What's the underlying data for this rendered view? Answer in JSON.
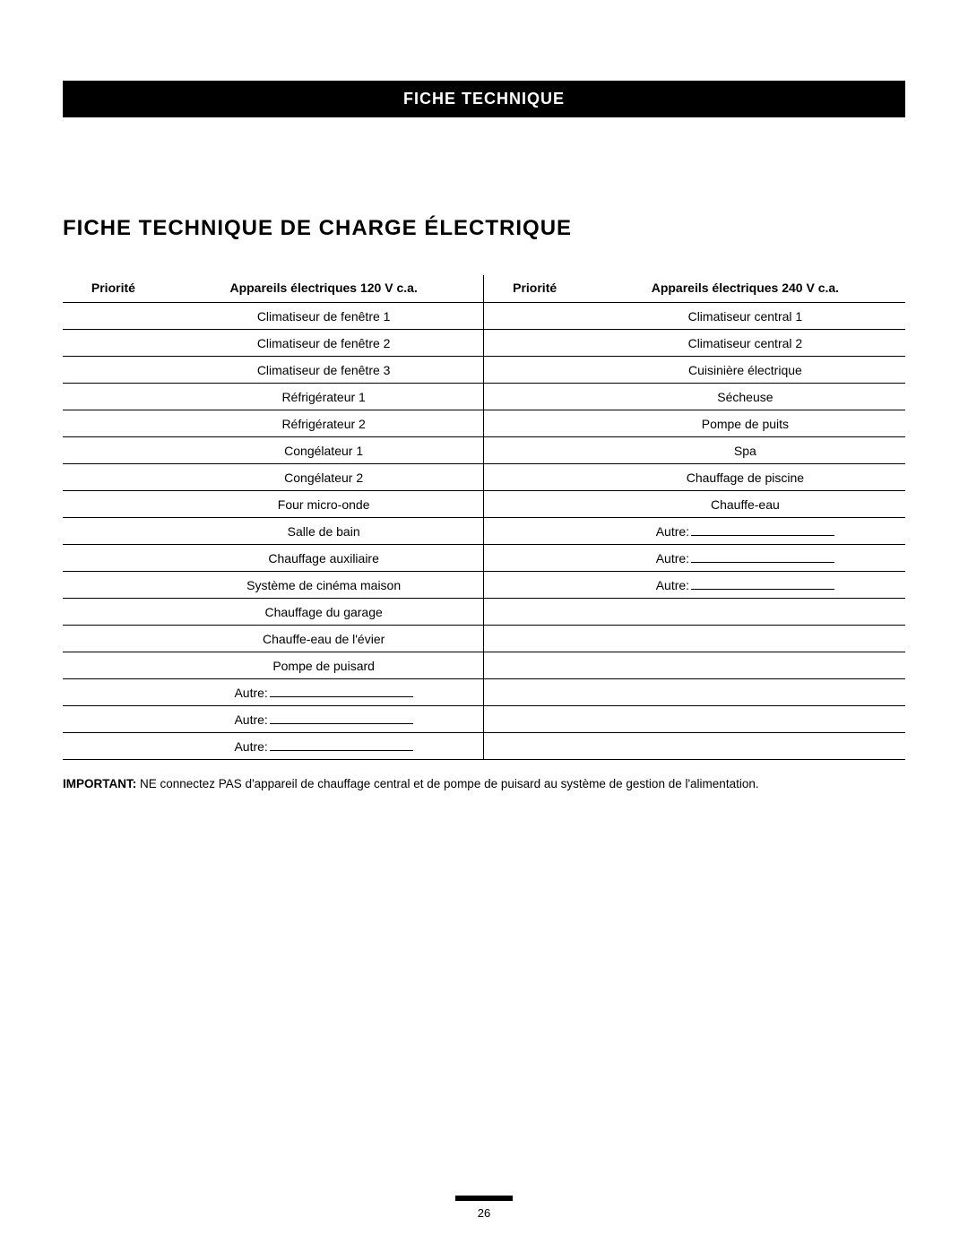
{
  "header": "FICHE TECHNIQUE",
  "section_title": "FICHE TECHNIQUE DE CHARGE ÉLECTRIQUE",
  "columns": {
    "pri_left": "Priorité",
    "app_left": "Appareils électriques 120 V c.a.",
    "pri_right": "Priorité",
    "app_right": "Appareils électriques 240 V c.a."
  },
  "other_label": "Autre:",
  "rows": [
    {
      "left": "Climatiseur de fenêtre 1",
      "right": "Climatiseur central 1"
    },
    {
      "left": "Climatiseur de fenêtre 2",
      "right": "Climatiseur central 2"
    },
    {
      "left": "Climatiseur de fenêtre 3",
      "right": "Cuisinière électrique"
    },
    {
      "left": "Réfrigérateur 1",
      "right": "Sécheuse"
    },
    {
      "left": "Réfrigérateur 2",
      "right": "Pompe de puits"
    },
    {
      "left": "Congélateur 1",
      "right": "Spa"
    },
    {
      "left": "Congélateur 2",
      "right": "Chauffage de piscine"
    },
    {
      "left": "Four micro-onde",
      "right": "Chauffe-eau"
    },
    {
      "left": "Salle de bain",
      "right_other": true
    },
    {
      "left": "Chauffage auxiliaire",
      "right_other": true
    },
    {
      "left": "Système de cinéma maison",
      "right_other": true
    },
    {
      "left": "Chauffage du garage",
      "right": ""
    },
    {
      "left": "Chauffe-eau de l'évier",
      "right": ""
    },
    {
      "left": "Pompe de puisard",
      "right": ""
    },
    {
      "left_other": true,
      "right": ""
    },
    {
      "left_other": true,
      "right": ""
    },
    {
      "left_other": true,
      "right": ""
    }
  ],
  "important_label": "IMPORTANT:",
  "important_text": " NE connectez PAS d'appareil de chauffage central et de pompe de puisard au système de gestion de l'alimentation.",
  "page_number": "26"
}
